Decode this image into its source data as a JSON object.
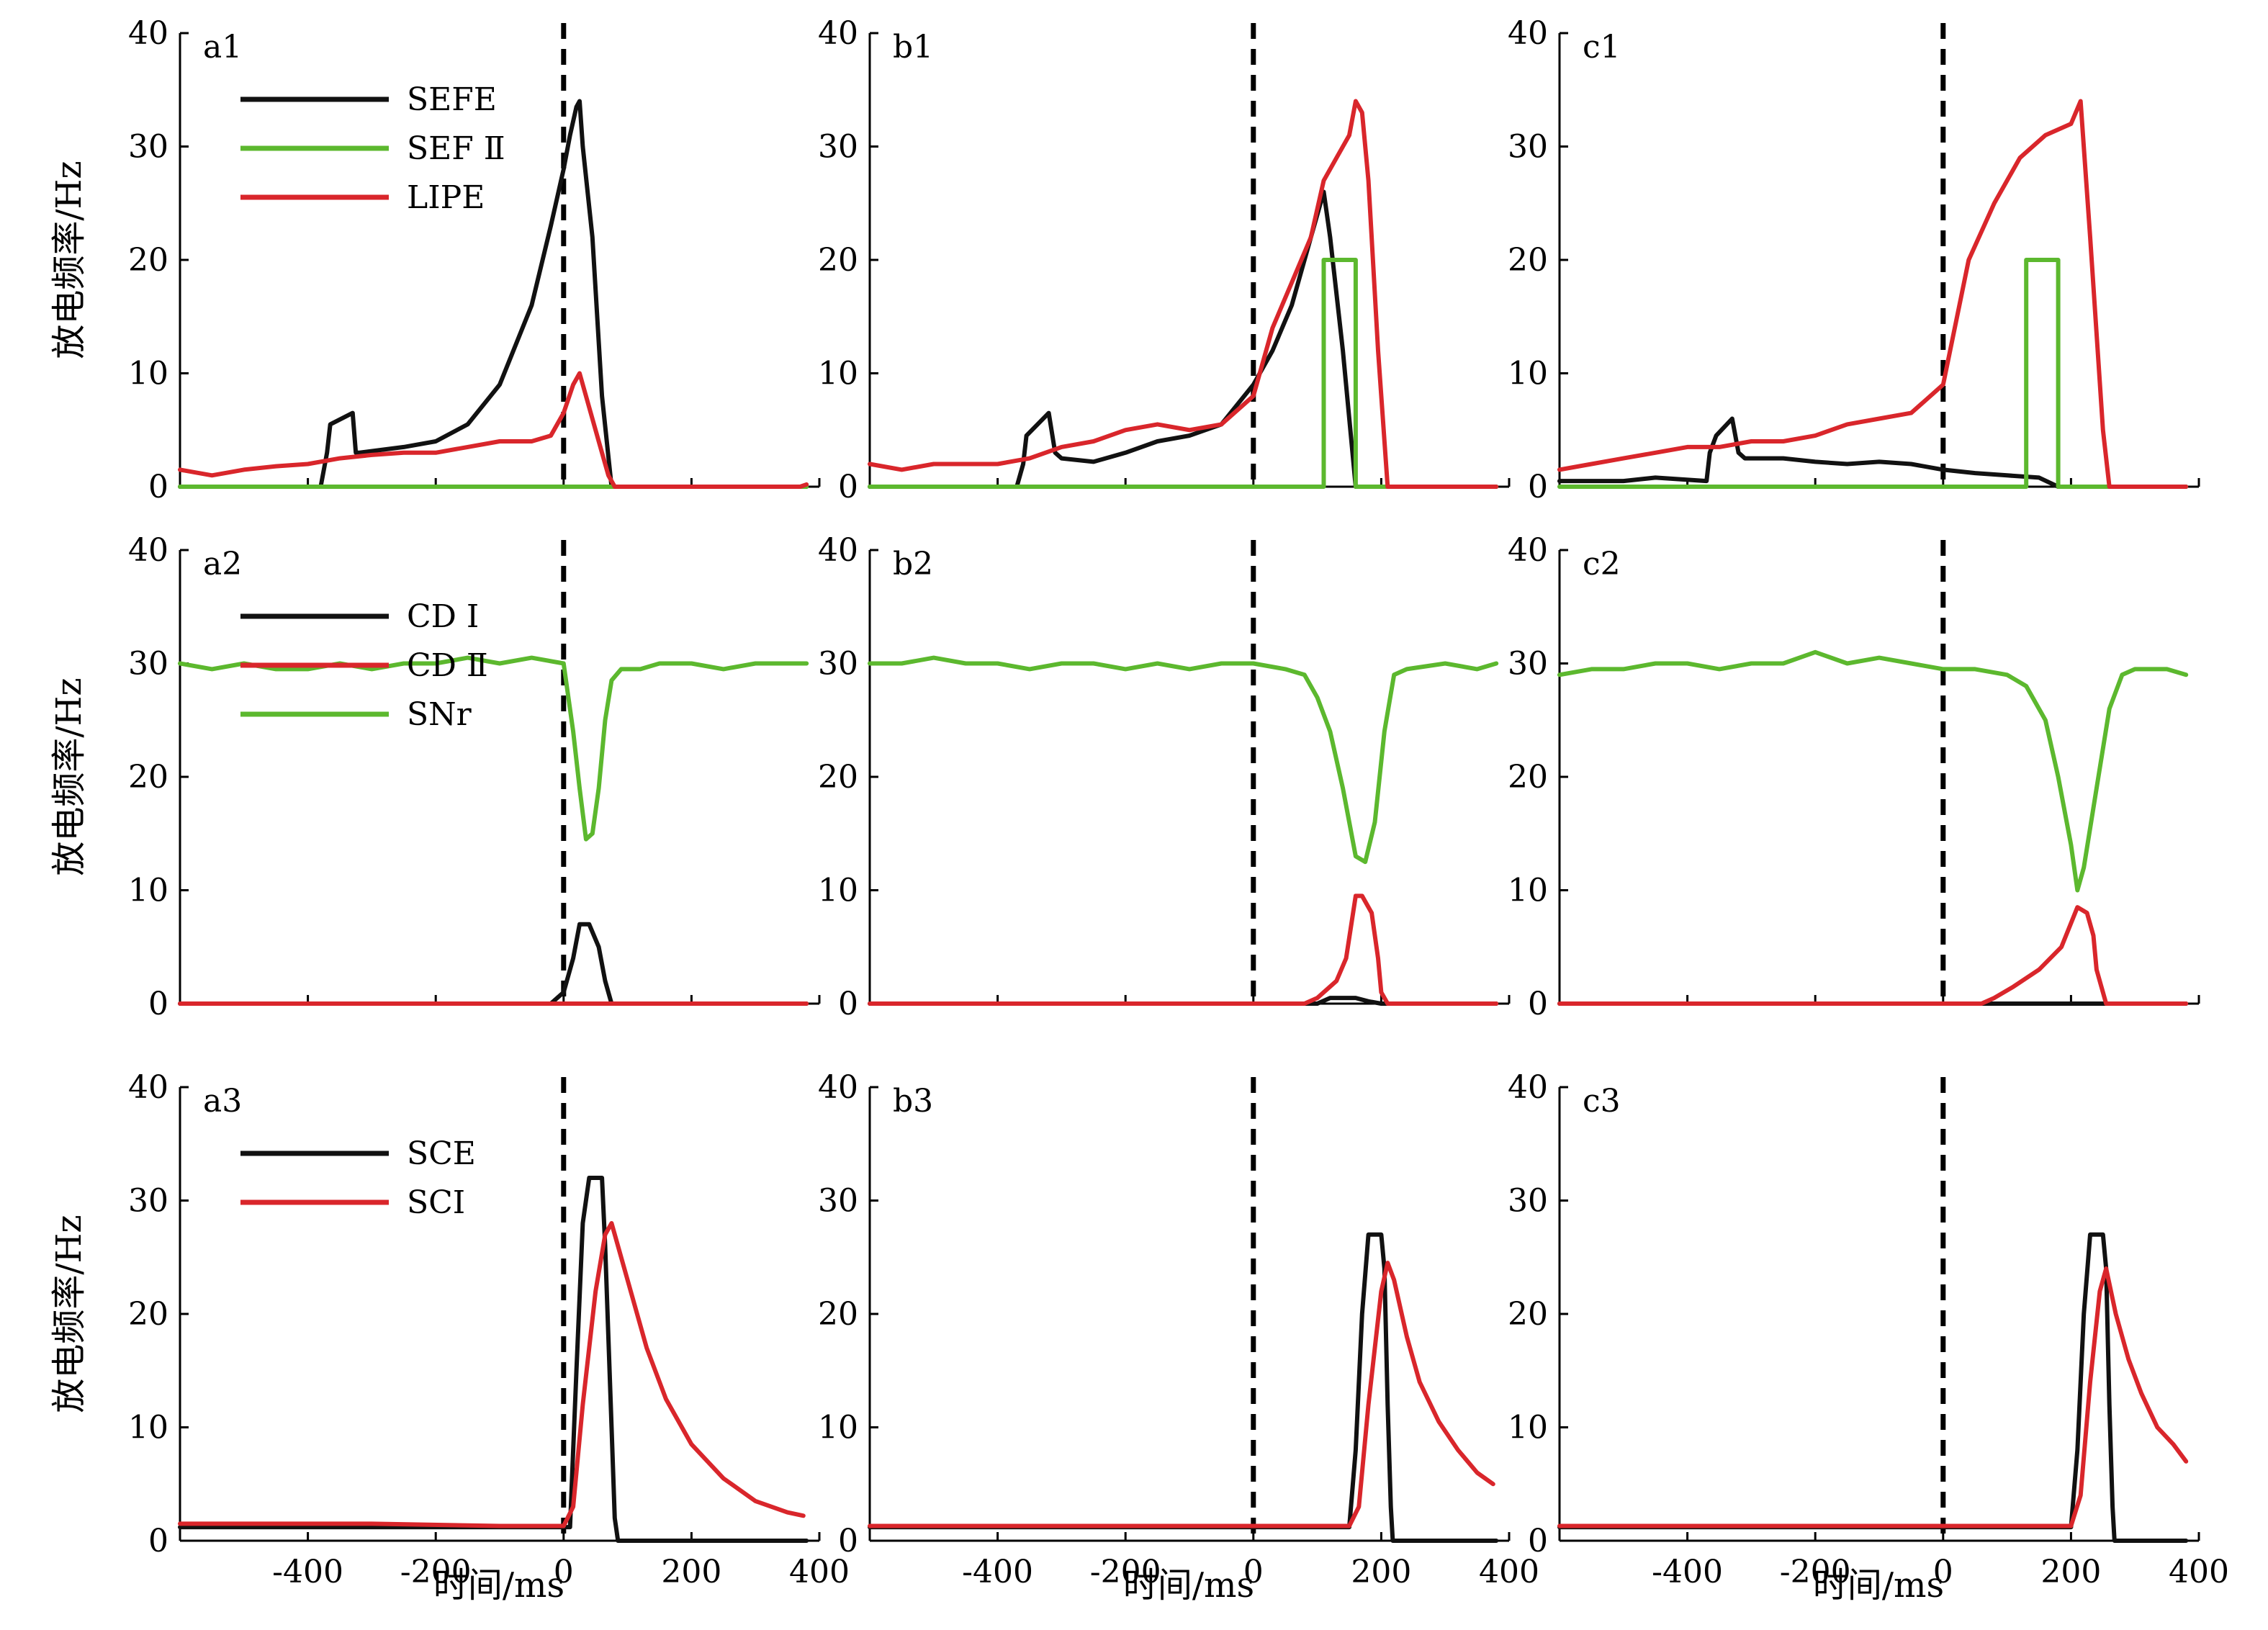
{
  "colors": {
    "black": "#111111",
    "green": "#5cb82e",
    "red": "#d9262b"
  },
  "xlabel": "时间/ms",
  "ylabel": "放电频率/Hz",
  "chart_data": [
    {
      "id": "a1",
      "type": "line",
      "label": "a1",
      "xlim": [
        -600,
        400
      ],
      "ylim": [
        0,
        40
      ],
      "xticks": [],
      "yticks": [
        0,
        10,
        20,
        30,
        40
      ],
      "vline_x": 0,
      "show_ylabel": true,
      "show_xlabel": false,
      "legend": [
        "SEFE",
        "SEF Ⅱ",
        "LIPE"
      ],
      "series": [
        {
          "name": "SEFE",
          "color": "black",
          "x": [
            -600,
            -380,
            -370,
            -365,
            -330,
            -325,
            -320,
            -250,
            -200,
            -150,
            -100,
            -50,
            -20,
            0,
            10,
            20,
            25,
            30,
            45,
            60,
            75,
            380
          ],
          "y": [
            0,
            0,
            3,
            5.5,
            6.5,
            3,
            3,
            3.5,
            4,
            5.5,
            9,
            16,
            23,
            28,
            31,
            33.5,
            34,
            30,
            22,
            8,
            0,
            0
          ]
        },
        {
          "name": "SEF Ⅱ",
          "color": "green",
          "x": [
            -600,
            380
          ],
          "y": [
            0,
            0
          ]
        },
        {
          "name": "LIPE",
          "color": "red",
          "x": [
            -600,
            -550,
            -500,
            -450,
            -400,
            -350,
            -300,
            -250,
            -200,
            -150,
            -100,
            -50,
            -20,
            0,
            15,
            25,
            40,
            55,
            70,
            80,
            370,
            380
          ],
          "y": [
            1.5,
            1,
            1.5,
            1.8,
            2,
            2.5,
            2.8,
            3,
            3,
            3.5,
            4,
            4,
            4.5,
            6.5,
            9,
            10,
            7,
            4,
            1,
            0,
            0,
            0.2
          ]
        }
      ]
    },
    {
      "id": "b1",
      "type": "line",
      "label": "b1",
      "xlim": [
        -600,
        400
      ],
      "ylim": [
        0,
        40
      ],
      "xticks": [],
      "yticks": [
        0,
        10,
        20,
        30,
        40
      ],
      "vline_x": 0,
      "show_ylabel": false,
      "show_xlabel": false,
      "legend": [],
      "series": [
        {
          "name": "SEFE",
          "color": "black",
          "x": [
            -600,
            -370,
            -360,
            -355,
            -320,
            -310,
            -300,
            -250,
            -200,
            -150,
            -100,
            -50,
            0,
            30,
            60,
            90,
            110,
            120,
            140,
            160,
            380
          ],
          "y": [
            0,
            0,
            2,
            4.5,
            6.5,
            3,
            2.5,
            2.2,
            3,
            4,
            4.5,
            5.5,
            9,
            12,
            16,
            22,
            26,
            22,
            12,
            0,
            0
          ]
        },
        {
          "name": "SEF Ⅱ",
          "color": "green",
          "x": [
            -600,
            110,
            110,
            160,
            160,
            380
          ],
          "y": [
            0,
            0,
            20,
            20,
            0,
            0
          ]
        },
        {
          "name": "LIPE",
          "color": "red",
          "x": [
            -600,
            -550,
            -500,
            -450,
            -400,
            -350,
            -300,
            -250,
            -200,
            -150,
            -100,
            -50,
            0,
            30,
            60,
            90,
            110,
            130,
            150,
            160,
            170,
            180,
            195,
            210,
            380
          ],
          "y": [
            2,
            1.5,
            2,
            2,
            2,
            2.5,
            3.5,
            4,
            5,
            5.5,
            5,
            5.5,
            8,
            14,
            18,
            22,
            27,
            29,
            31,
            34,
            33,
            27,
            12,
            0,
            0
          ]
        }
      ]
    },
    {
      "id": "c1",
      "type": "line",
      "label": "c1",
      "xlim": [
        -600,
        400
      ],
      "ylim": [
        0,
        40
      ],
      "xticks": [],
      "yticks": [
        0,
        10,
        20,
        30,
        40
      ],
      "vline_x": 0,
      "show_ylabel": false,
      "show_xlabel": false,
      "legend": [],
      "series": [
        {
          "name": "SEFE",
          "color": "black",
          "x": [
            -600,
            -500,
            -450,
            -370,
            -365,
            -355,
            -330,
            -320,
            -310,
            -250,
            -200,
            -150,
            -100,
            -50,
            0,
            50,
            100,
            150,
            180,
            380
          ],
          "y": [
            0.5,
            0.5,
            0.8,
            0.5,
            3,
            4.5,
            6,
            3,
            2.5,
            2.5,
            2.2,
            2,
            2.2,
            2,
            1.5,
            1.2,
            1,
            0.8,
            0,
            0
          ]
        },
        {
          "name": "SEF Ⅱ",
          "color": "green",
          "x": [
            -600,
            130,
            130,
            180,
            180,
            380
          ],
          "y": [
            0,
            0,
            20,
            20,
            0,
            0
          ]
        },
        {
          "name": "LIPE",
          "color": "red",
          "x": [
            -600,
            -550,
            -500,
            -450,
            -400,
            -350,
            -300,
            -250,
            -200,
            -150,
            -100,
            -50,
            0,
            40,
            80,
            120,
            160,
            200,
            215,
            230,
            250,
            260,
            380
          ],
          "y": [
            1.5,
            2,
            2.5,
            3,
            3.5,
            3.5,
            4,
            4,
            4.5,
            5.5,
            6,
            6.5,
            9,
            20,
            25,
            29,
            31,
            32,
            34,
            22,
            5,
            0,
            0
          ]
        }
      ]
    },
    {
      "id": "a2",
      "type": "line",
      "label": "a2",
      "xlim": [
        -600,
        400
      ],
      "ylim": [
        0,
        40
      ],
      "xticks": [],
      "yticks": [
        0,
        10,
        20,
        30,
        40
      ],
      "vline_x": 0,
      "show_ylabel": true,
      "show_xlabel": false,
      "legend": [
        "CD Ⅰ",
        "CD Ⅱ",
        "SNr"
      ],
      "series": [
        {
          "name": "SNr",
          "color": "green",
          "x": [
            -600,
            -550,
            -500,
            -450,
            -400,
            -350,
            -300,
            -250,
            -200,
            -150,
            -100,
            -50,
            0,
            5,
            15,
            25,
            35,
            45,
            55,
            65,
            75,
            90,
            120,
            150,
            200,
            250,
            300,
            350,
            380
          ],
          "y": [
            30,
            29.5,
            30,
            29.5,
            29.5,
            30,
            29.5,
            30,
            30,
            30.5,
            30,
            30.5,
            30,
            28,
            24,
            19,
            14.5,
            15,
            19,
            25,
            28.5,
            29.5,
            29.5,
            30,
            30,
            29.5,
            30,
            30,
            30
          ]
        },
        {
          "name": "CD Ⅰ",
          "color": "black",
          "x": [
            -600,
            -20,
            0,
            15,
            25,
            40,
            55,
            65,
            75,
            380
          ],
          "y": [
            0,
            0,
            1,
            4,
            7,
            7,
            5,
            2,
            0,
            0
          ]
        },
        {
          "name": "CD Ⅱ",
          "color": "red",
          "x": [
            -600,
            380
          ],
          "y": [
            0,
            0
          ]
        }
      ]
    },
    {
      "id": "b2",
      "type": "line",
      "label": "b2",
      "xlim": [
        -600,
        400
      ],
      "ylim": [
        0,
        40
      ],
      "xticks": [],
      "yticks": [
        0,
        10,
        20,
        30,
        40
      ],
      "vline_x": 0,
      "show_ylabel": false,
      "show_xlabel": false,
      "legend": [],
      "series": [
        {
          "name": "SNr",
          "color": "green",
          "x": [
            -600,
            -550,
            -500,
            -450,
            -400,
            -350,
            -300,
            -250,
            -200,
            -150,
            -100,
            -50,
            0,
            50,
            80,
            100,
            120,
            140,
            160,
            175,
            190,
            205,
            220,
            240,
            300,
            350,
            380
          ],
          "y": [
            30,
            30,
            30.5,
            30,
            30,
            29.5,
            30,
            30,
            29.5,
            30,
            29.5,
            30,
            30,
            29.5,
            29,
            27,
            24,
            19,
            13,
            12.5,
            16,
            24,
            29,
            29.5,
            30,
            29.5,
            30
          ]
        },
        {
          "name": "CD Ⅰ",
          "color": "black",
          "x": [
            -600,
            100,
            120,
            160,
            180,
            200,
            380
          ],
          "y": [
            0,
            0,
            0.5,
            0.5,
            0.2,
            0,
            0
          ]
        },
        {
          "name": "CD Ⅱ",
          "color": "red",
          "x": [
            -600,
            80,
            100,
            130,
            145,
            160,
            170,
            185,
            195,
            200,
            210,
            380
          ],
          "y": [
            0,
            0,
            0.5,
            2,
            4,
            9.5,
            9.5,
            8,
            4,
            1,
            0,
            0
          ]
        }
      ]
    },
    {
      "id": "c2",
      "type": "line",
      "label": "c2",
      "xlim": [
        -600,
        400
      ],
      "ylim": [
        0,
        40
      ],
      "xticks": [],
      "yticks": [
        0,
        10,
        20,
        30,
        40
      ],
      "vline_x": 0,
      "show_ylabel": false,
      "show_xlabel": false,
      "legend": [],
      "series": [
        {
          "name": "SNr",
          "color": "green",
          "x": [
            -600,
            -550,
            -500,
            -450,
            -400,
            -350,
            -300,
            -250,
            -200,
            -150,
            -100,
            -50,
            0,
            50,
            100,
            130,
            160,
            180,
            200,
            210,
            220,
            240,
            260,
            280,
            300,
            350,
            380
          ],
          "y": [
            29,
            29.5,
            29.5,
            30,
            30,
            29.5,
            30,
            30,
            31,
            30,
            30.5,
            30,
            29.5,
            29.5,
            29,
            28,
            25,
            20,
            14,
            10,
            12,
            19,
            26,
            29,
            29.5,
            29.5,
            29
          ]
        },
        {
          "name": "CD Ⅰ",
          "color": "black",
          "x": [
            -600,
            380
          ],
          "y": [
            0,
            0
          ]
        },
        {
          "name": "CD Ⅱ",
          "color": "red",
          "x": [
            -600,
            60,
            80,
            110,
            150,
            185,
            210,
            225,
            235,
            240,
            255,
            380
          ],
          "y": [
            0,
            0,
            0.5,
            1.5,
            3,
            5,
            8.5,
            8,
            6,
            3,
            0,
            0
          ]
        }
      ]
    },
    {
      "id": "a3",
      "type": "line",
      "label": "a3",
      "xlim": [
        -600,
        400
      ],
      "ylim": [
        0,
        40
      ],
      "xticks": [
        -400,
        -200,
        0,
        200,
        400
      ],
      "yticks": [
        0,
        10,
        20,
        30,
        40
      ],
      "vline_x": 0,
      "show_ylabel": true,
      "show_xlabel": true,
      "legend": [
        "SCE",
        "SCI"
      ],
      "series": [
        {
          "name": "SCE",
          "color": "black",
          "x": [
            -600,
            -100,
            10,
            20,
            30,
            40,
            60,
            65,
            75,
            80,
            85,
            380
          ],
          "y": [
            1.2,
            1.2,
            1.2,
            15,
            28,
            32,
            32,
            26,
            10,
            2,
            0,
            0
          ]
        },
        {
          "name": "SCI",
          "color": "red",
          "x": [
            -600,
            -300,
            -100,
            0,
            15,
            30,
            50,
            65,
            75,
            100,
            130,
            160,
            200,
            250,
            300,
            350,
            375
          ],
          "y": [
            1.5,
            1.5,
            1.3,
            1.3,
            3,
            12,
            22,
            27,
            28,
            23,
            17,
            12.5,
            8.5,
            5.5,
            3.5,
            2.5,
            2.2
          ]
        }
      ]
    },
    {
      "id": "b3",
      "type": "line",
      "label": "b3",
      "xlim": [
        -600,
        400
      ],
      "ylim": [
        0,
        40
      ],
      "xticks": [
        -400,
        -200,
        0,
        200,
        400
      ],
      "yticks": [
        0,
        10,
        20,
        30,
        40
      ],
      "vline_x": 0,
      "show_ylabel": false,
      "show_xlabel": true,
      "legend": [],
      "series": [
        {
          "name": "SCE",
          "color": "black",
          "x": [
            -600,
            150,
            160,
            170,
            180,
            200,
            205,
            210,
            215,
            218,
            380
          ],
          "y": [
            1.2,
            1.2,
            8,
            20,
            27,
            27,
            24,
            12,
            3,
            0,
            0
          ]
        },
        {
          "name": "SCI",
          "color": "red",
          "x": [
            -600,
            -300,
            0,
            150,
            165,
            180,
            200,
            210,
            220,
            240,
            260,
            290,
            320,
            350,
            375
          ],
          "y": [
            1.3,
            1.3,
            1.3,
            1.3,
            3,
            12,
            22,
            24.5,
            23,
            18,
            14,
            10.5,
            8,
            6,
            5
          ]
        }
      ]
    },
    {
      "id": "c3",
      "type": "line",
      "label": "c3",
      "xlim": [
        -600,
        400
      ],
      "ylim": [
        0,
        40
      ],
      "xticks": [
        -400,
        -200,
        0,
        200,
        400
      ],
      "yticks": [
        0,
        10,
        20,
        30,
        40
      ],
      "vline_x": 0,
      "show_ylabel": false,
      "show_xlabel": true,
      "legend": [],
      "series": [
        {
          "name": "SCE",
          "color": "black",
          "x": [
            -600,
            200,
            210,
            220,
            230,
            250,
            255,
            260,
            265,
            268,
            380
          ],
          "y": [
            1.2,
            1.2,
            8,
            20,
            27,
            27,
            24,
            12,
            3,
            0,
            0
          ]
        },
        {
          "name": "SCI",
          "color": "red",
          "x": [
            -600,
            -300,
            0,
            200,
            215,
            230,
            245,
            255,
            270,
            290,
            310,
            335,
            360,
            380
          ],
          "y": [
            1.3,
            1.3,
            1.3,
            1.3,
            4,
            14,
            22,
            24,
            20,
            16,
            13,
            10,
            8.5,
            7
          ]
        }
      ]
    }
  ]
}
